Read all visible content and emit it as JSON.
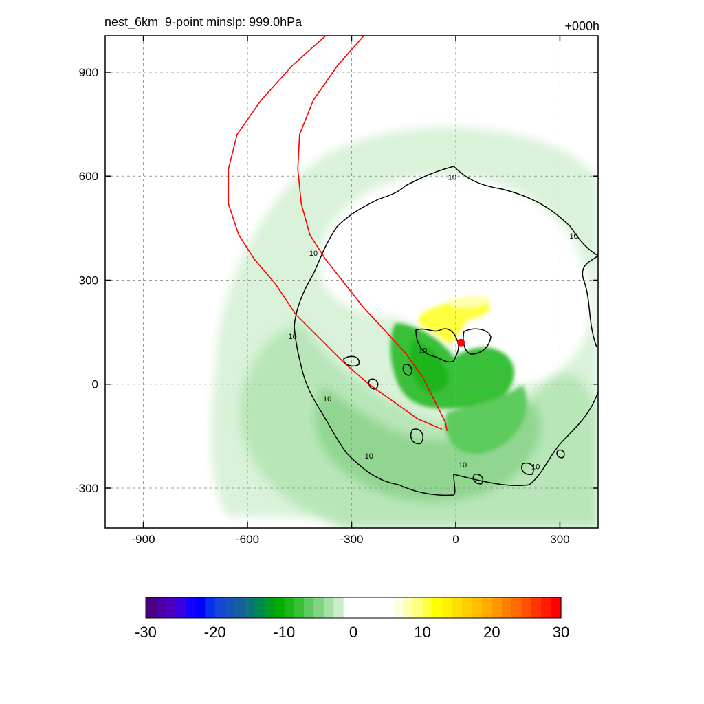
{
  "chart_data": {
    "type": "heatmap",
    "title": "nest_6km  9-point minslp: 999.0hPa",
    "time_label": "+000h",
    "xlabel": "",
    "ylabel": "",
    "xlim": [
      -1010,
      410
    ],
    "ylim": [
      -415,
      1005
    ],
    "x_ticks": [
      -900,
      -600,
      -300,
      0,
      300
    ],
    "y_ticks": [
      -300,
      0,
      300,
      600,
      900
    ],
    "grid": true,
    "grid_style": "dashed",
    "contour_label": "10",
    "contour_label_positions": [
      [
        -10,
        590
      ],
      [
        -410,
        370
      ],
      [
        -470,
        130
      ],
      [
        -95,
        90
      ],
      [
        -370,
        -50
      ],
      [
        -250,
        -215
      ],
      [
        20,
        -240
      ],
      [
        230,
        -245
      ],
      [
        340,
        420
      ]
    ],
    "center_marker": {
      "x": 15,
      "y": 120,
      "color": "#ff0000"
    },
    "track_lines": {
      "color": "#ff0000",
      "outer": [
        [
          -375,
          1005
        ],
        [
          -470,
          920
        ],
        [
          -560,
          820
        ],
        [
          -630,
          720
        ],
        [
          -655,
          620
        ],
        [
          -655,
          520
        ],
        [
          -625,
          430
        ],
        [
          -580,
          360
        ],
        [
          -520,
          290
        ],
        [
          -460,
          200
        ],
        [
          -390,
          130
        ],
        [
          -320,
          60
        ],
        [
          -250,
          0
        ],
        [
          -180,
          -50
        ],
        [
          -110,
          -100
        ],
        [
          -40,
          -130
        ]
      ],
      "inner": [
        [
          -265,
          1005
        ],
        [
          -340,
          920
        ],
        [
          -410,
          820
        ],
        [
          -450,
          720
        ],
        [
          -455,
          620
        ],
        [
          -445,
          520
        ],
        [
          -420,
          430
        ],
        [
          -375,
          360
        ],
        [
          -320,
          290
        ],
        [
          -265,
          220
        ],
        [
          -200,
          150
        ],
        [
          -145,
          90
        ],
        [
          -95,
          20
        ],
        [
          -60,
          -50
        ],
        [
          -30,
          -110
        ],
        [
          -25,
          -135
        ]
      ]
    },
    "colorbar": {
      "min": -30,
      "max": 30,
      "tick_labels": [
        "-30",
        "-20",
        "-10",
        "0",
        "10",
        "20",
        "30"
      ],
      "colors": [
        "#4b0082",
        "#4d00a0",
        "#4a00c0",
        "#3a00e0",
        "#1800ff",
        "#0000ff",
        "#0b2ee8",
        "#1646d6",
        "#1a52bb",
        "#16609e",
        "#10707f",
        "#00864f",
        "#009a28",
        "#00ad00",
        "#1bb61b",
        "#37c037",
        "#5dcb5d",
        "#80d680",
        "#a6e2a6",
        "#c9eec9",
        "#ffffff",
        "#ffffff",
        "#ffffff",
        "#ffffff",
        "#ffffff",
        "#ffffe0",
        "#ffffb0",
        "#ffff80",
        "#ffff40",
        "#ffff00",
        "#fff000",
        "#ffe000",
        "#ffd000",
        "#ffc000",
        "#ffac00",
        "#ff9800",
        "#ff8000",
        "#ff6a00",
        "#ff5000",
        "#ff3400",
        "#ff1a00",
        "#ff0000"
      ]
    }
  }
}
